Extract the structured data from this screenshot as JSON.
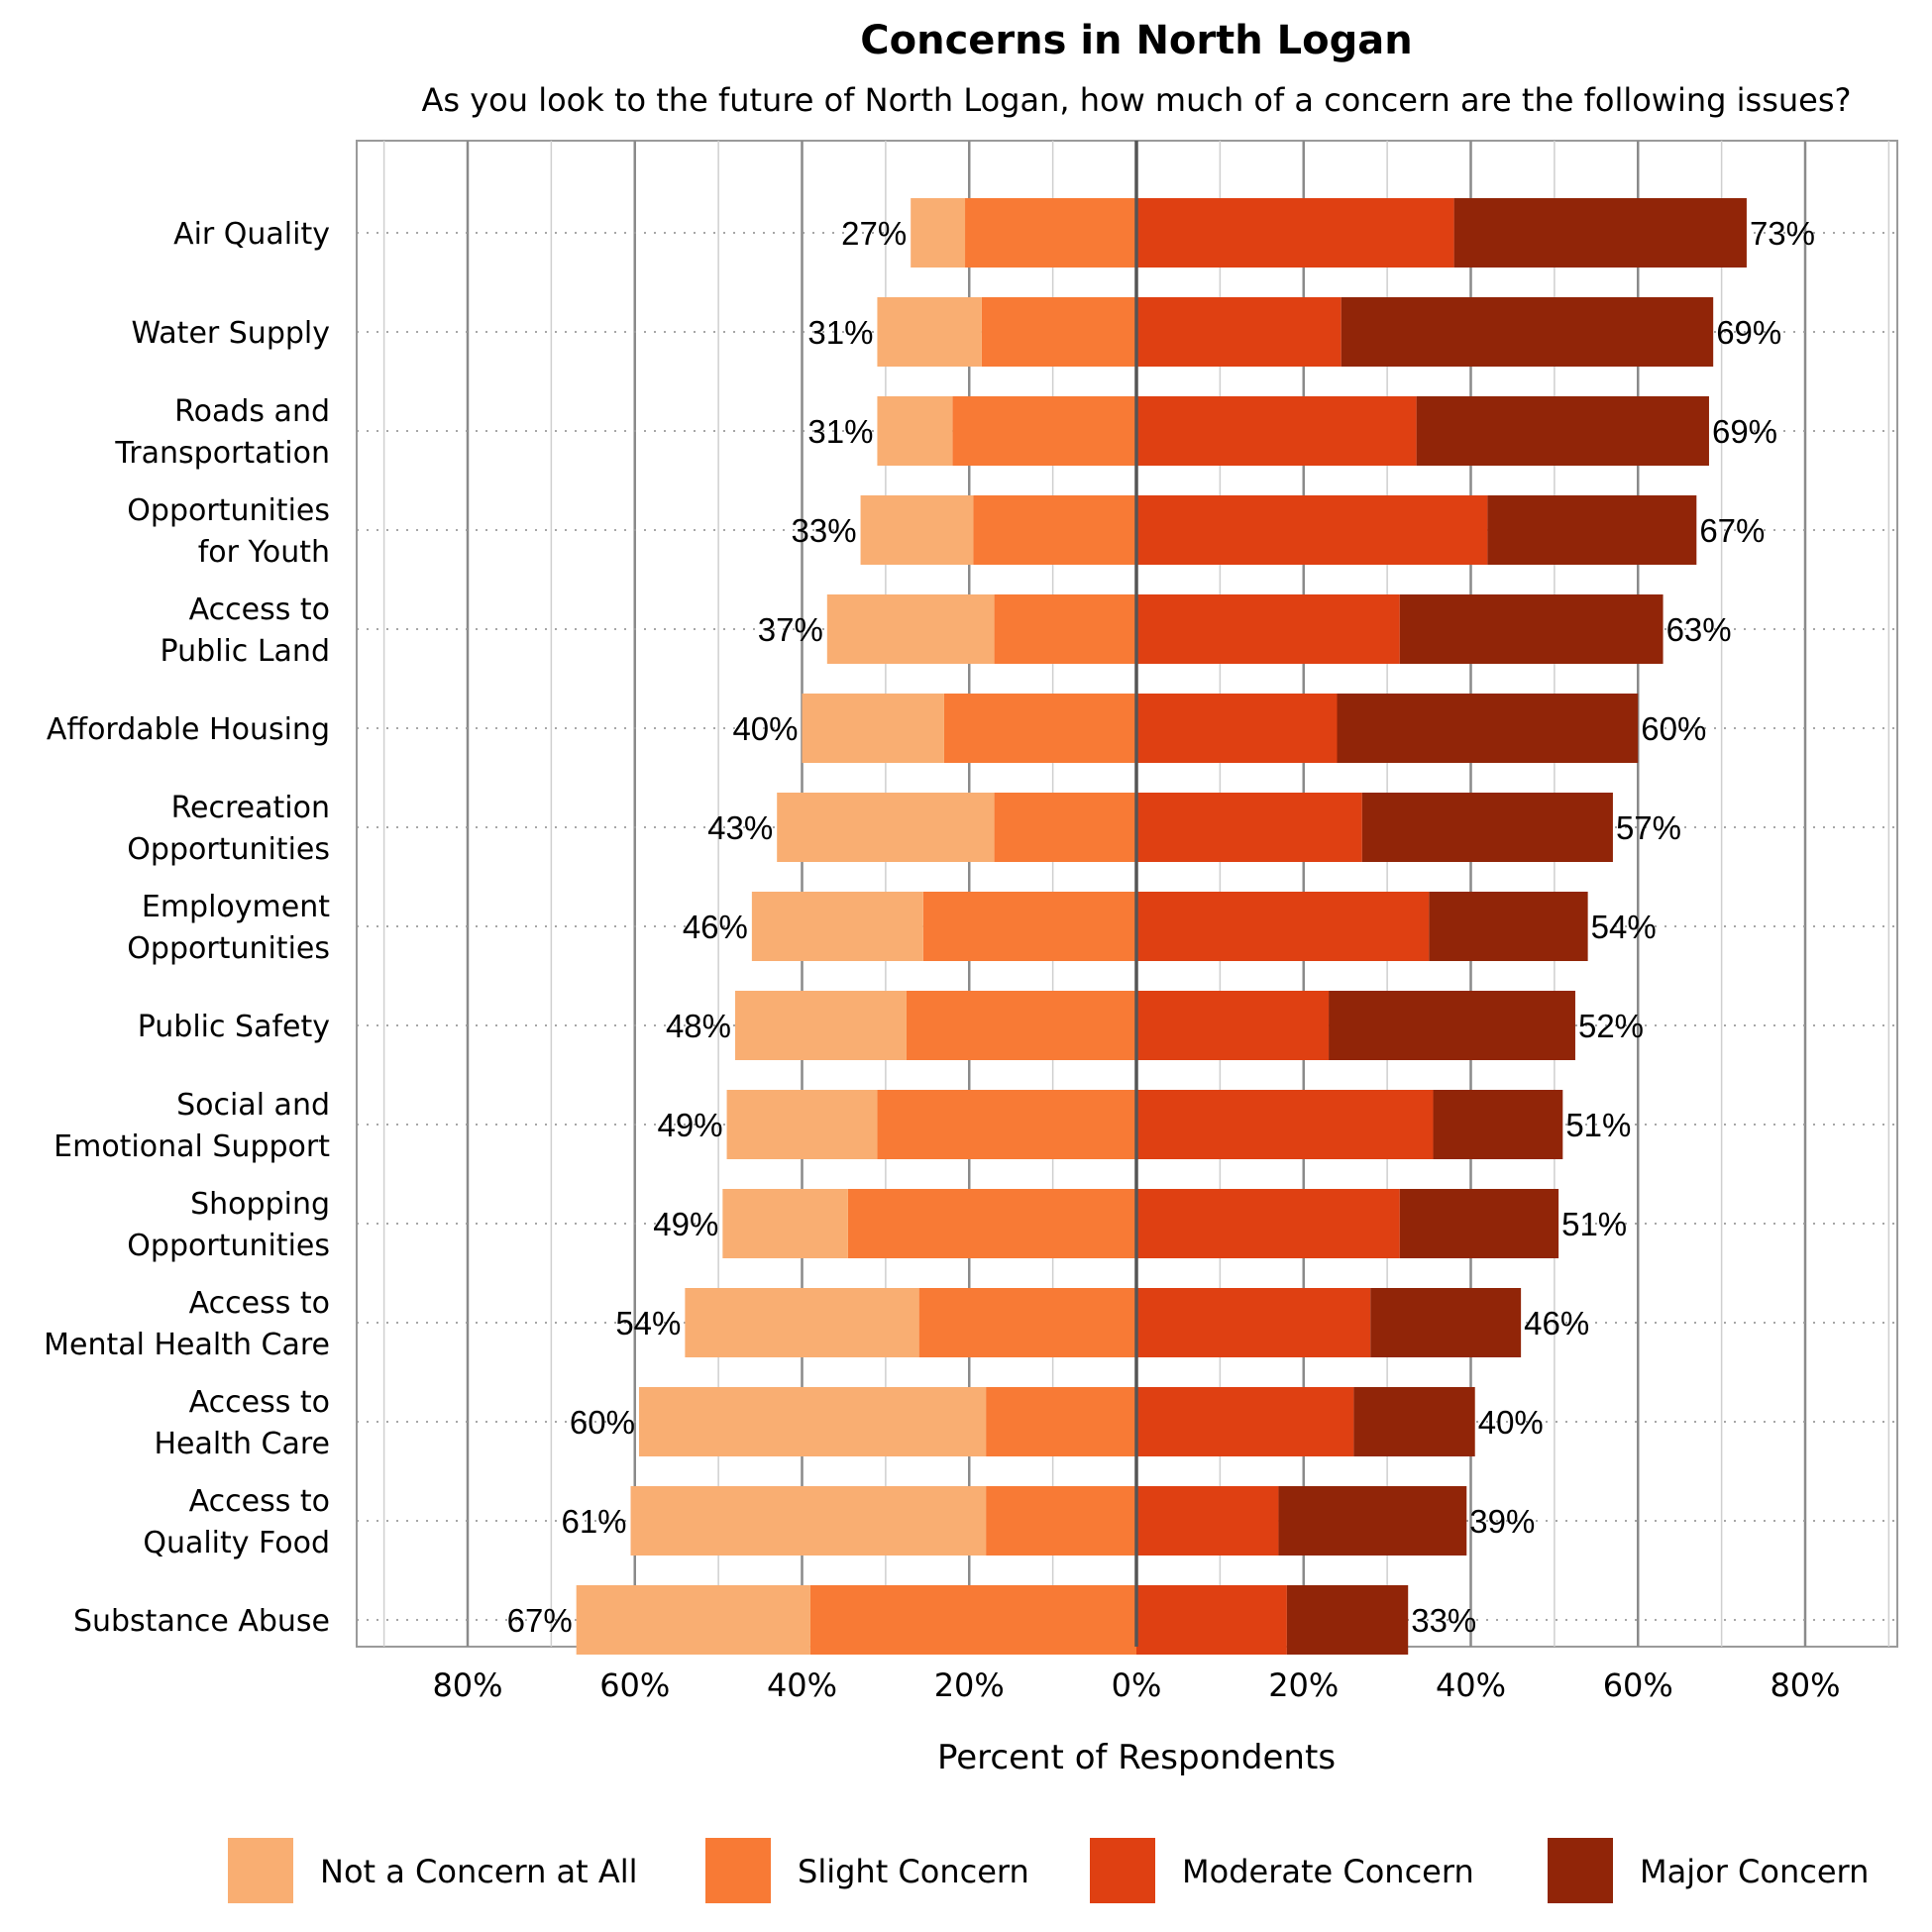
{
  "chart_data": {
    "type": "bar",
    "orientation": "horizontal-diverging",
    "title": "Concerns in North Logan",
    "subtitle": "As you look to the future of North Logan, how much of a concern are the following issues?",
    "xlabel": "Percent of Respondents",
    "ylabel": "",
    "xlim": [
      -80,
      80
    ],
    "x_ticks": [
      -80,
      -60,
      -40,
      -20,
      0,
      20,
      40,
      60,
      80
    ],
    "x_tick_labels": [
      "80%",
      "60%",
      "40%",
      "20%",
      "0%",
      "20%",
      "40%",
      "60%",
      "80%"
    ],
    "grid": true,
    "legend_position": "bottom",
    "categories": [
      [
        "Air Quality"
      ],
      [
        "Water Supply"
      ],
      [
        "Roads and",
        "Transportation"
      ],
      [
        "Opportunities",
        "for Youth"
      ],
      [
        "Access to",
        "Public Land"
      ],
      [
        "Affordable Housing"
      ],
      [
        "Recreation",
        "Opportunities"
      ],
      [
        "Employment",
        "Opportunities"
      ],
      [
        "Public Safety"
      ],
      [
        "Social and",
        "Emotional Support"
      ],
      [
        "Shopping",
        "Opportunities"
      ],
      [
        "Access to",
        "Mental Health Care"
      ],
      [
        "Access to",
        "Health Care"
      ],
      [
        "Access to",
        "Quality Food"
      ],
      [
        "Substance Abuse"
      ]
    ],
    "series": [
      {
        "name": "Not a Concern at All",
        "side": "negative",
        "color": "#F9AE72",
        "values": [
          6.5,
          12.5,
          9,
          13.5,
          20,
          17,
          26,
          20.5,
          20.5,
          18,
          15,
          28,
          41.5,
          42.5,
          28
        ]
      },
      {
        "name": "Slight Concern",
        "side": "negative",
        "color": "#F87A35",
        "values": [
          20.5,
          18.5,
          22,
          19.5,
          17,
          23,
          17,
          25.5,
          27.5,
          31,
          34.5,
          26,
          18,
          18,
          39
        ]
      },
      {
        "name": "Moderate Concern",
        "side": "positive",
        "color": "#DF4012",
        "values": [
          38,
          24.5,
          33.5,
          42,
          31.5,
          24,
          27,
          35,
          23,
          35.5,
          31.5,
          28,
          26,
          17,
          18
        ]
      },
      {
        "name": "Major Concern",
        "side": "positive",
        "color": "#912508",
        "values": [
          35,
          44.5,
          35,
          25,
          31.5,
          36,
          30,
          19,
          29.5,
          15.5,
          19,
          18,
          14.5,
          22.5,
          14.5
        ]
      }
    ],
    "negative_totals": [
      "27%",
      "31%",
      "31%",
      "33%",
      "37%",
      "40%",
      "43%",
      "46%",
      "48%",
      "49%",
      "49%",
      "54%",
      "60%",
      "61%",
      "67%"
    ],
    "positive_totals": [
      "73%",
      "69%",
      "69%",
      "67%",
      "63%",
      "60%",
      "57%",
      "54%",
      "52%",
      "51%",
      "51%",
      "46%",
      "40%",
      "39%",
      "33%"
    ]
  }
}
